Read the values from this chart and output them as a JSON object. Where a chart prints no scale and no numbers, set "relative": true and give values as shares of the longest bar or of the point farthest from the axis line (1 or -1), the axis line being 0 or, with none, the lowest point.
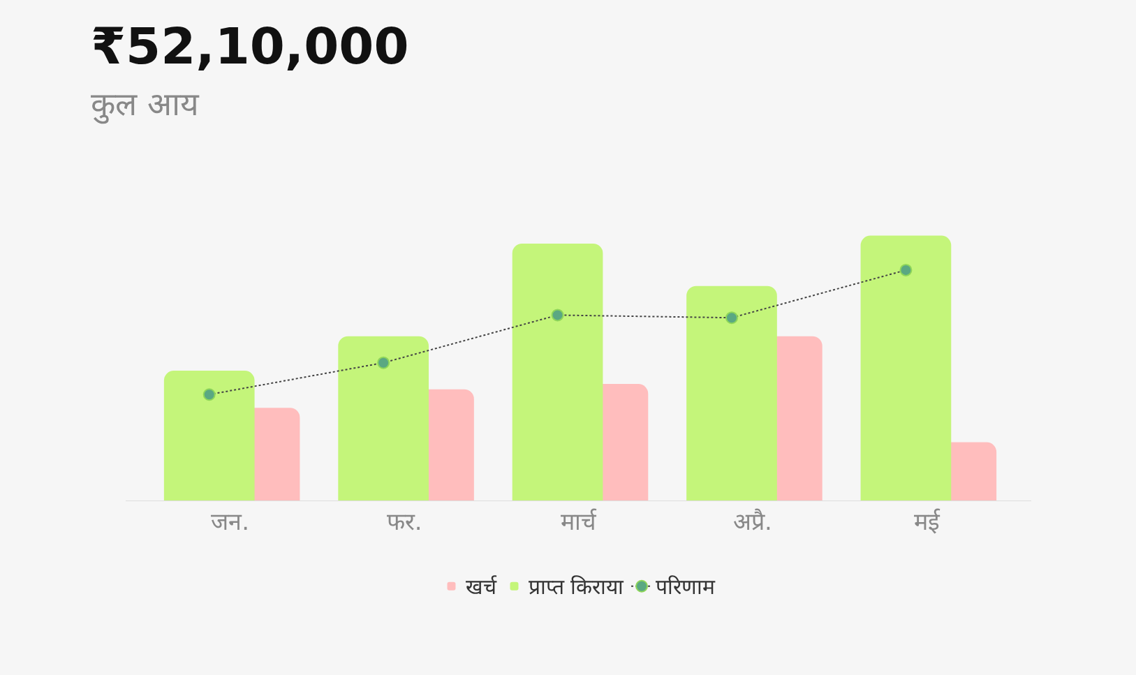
{
  "chart_data": {
    "type": "bar",
    "title": "₹52,10,000",
    "subtitle": "कुल आय",
    "categories": [
      "जन.",
      "फर.",
      "मार्च",
      "अप्रै.",
      "मई"
    ],
    "relative": true,
    "legend": "bottom",
    "grid": false,
    "series": [
      {
        "name": "प्राप्त किराया",
        "color": "#c4f57a",
        "values": [
          0.49,
          0.62,
          0.97,
          0.81,
          1.0
        ]
      },
      {
        "name": "खर्च",
        "color": "#ffbdbd",
        "values": [
          0.35,
          0.42,
          0.44,
          0.62,
          0.22
        ]
      },
      {
        "name": "परिणाम",
        "type": "line",
        "color": "#444444",
        "marker": "circle",
        "line_style": "dotted",
        "values": [
          0.4,
          0.52,
          0.7,
          0.69,
          0.87
        ]
      }
    ]
  }
}
